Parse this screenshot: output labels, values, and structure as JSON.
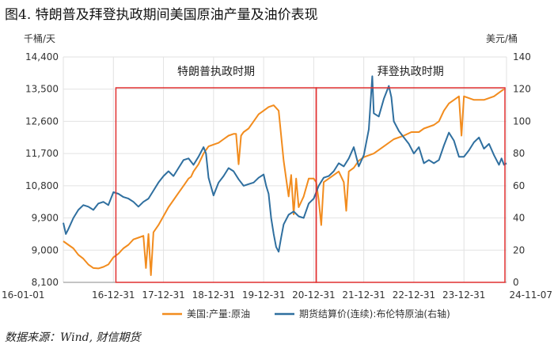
{
  "figure": {
    "title": "图4. 特朗普及拜登执政期间美国原油产量及油价表现",
    "source": "数据来源：Wind, 财信期货"
  },
  "chart_data": {
    "type": "line",
    "left_axis": {
      "unit": "千桶/天",
      "ylim": [
        8100,
        14400
      ],
      "ticks": [
        "14,400",
        "13,500",
        "12,600",
        "11,700",
        "10,800",
        "9,900",
        "9,000",
        "8,100"
      ],
      "tick_values": [
        14400,
        13500,
        12600,
        11700,
        10800,
        9900,
        9000,
        8100
      ]
    },
    "right_axis": {
      "unit": "美元/桶",
      "ylim": [
        0,
        140
      ],
      "ticks": [
        "140",
        "120",
        "100",
        "80",
        "60",
        "40",
        "20",
        "0"
      ],
      "tick_values": [
        140,
        120,
        100,
        80,
        60,
        40,
        20,
        0
      ]
    },
    "x_axis": {
      "tick_labels": [
        "16-01-01",
        "16-12-31",
        "17-12-31",
        "18-12-31",
        "19-12-31",
        "20-12-31",
        "21-12-31",
        "22-12-31",
        "23-12-31",
        "24-11-07"
      ],
      "tick_values": [
        2016.0,
        2017.0,
        2018.0,
        2019.0,
        2020.0,
        2021.0,
        2022.0,
        2023.0,
        2024.0,
        2024.85
      ],
      "xlim": [
        2016.0,
        2024.85
      ]
    },
    "grid": true,
    "legend_position": "bottom",
    "annotations": [
      {
        "label": "特朗普执政时期",
        "x_start": 2017.05,
        "x_end": 2021.05
      },
      {
        "label": "拜登执政时期",
        "x_start": 2021.05,
        "x_end": 2024.85
      }
    ],
    "annotation_color": "#e03030",
    "series": [
      {
        "name": "美国:产量:原油",
        "axis": "left",
        "color": "#f28c1e",
        "points": [
          [
            2016.0,
            9250
          ],
          [
            2016.1,
            9150
          ],
          [
            2016.2,
            9050
          ],
          [
            2016.3,
            8870
          ],
          [
            2016.4,
            8760
          ],
          [
            2016.5,
            8600
          ],
          [
            2016.6,
            8500
          ],
          [
            2016.7,
            8490
          ],
          [
            2016.8,
            8530
          ],
          [
            2016.9,
            8600
          ],
          [
            2017.0,
            8800
          ],
          [
            2017.1,
            8900
          ],
          [
            2017.2,
            9050
          ],
          [
            2017.3,
            9150
          ],
          [
            2017.4,
            9300
          ],
          [
            2017.5,
            9350
          ],
          [
            2017.6,
            9400
          ],
          [
            2017.65,
            8500
          ],
          [
            2017.7,
            9450
          ],
          [
            2017.75,
            8300
          ],
          [
            2017.8,
            9500
          ],
          [
            2017.9,
            9700
          ],
          [
            2018.0,
            9950
          ],
          [
            2018.1,
            10200
          ],
          [
            2018.2,
            10400
          ],
          [
            2018.3,
            10600
          ],
          [
            2018.4,
            10800
          ],
          [
            2018.5,
            11000
          ],
          [
            2018.55,
            11050
          ],
          [
            2018.6,
            11200
          ],
          [
            2018.7,
            11400
          ],
          [
            2018.8,
            11700
          ],
          [
            2018.9,
            11900
          ],
          [
            2019.0,
            11950
          ],
          [
            2019.1,
            12000
          ],
          [
            2019.2,
            12100
          ],
          [
            2019.3,
            12200
          ],
          [
            2019.4,
            12250
          ],
          [
            2019.45,
            12250
          ],
          [
            2019.5,
            11400
          ],
          [
            2019.55,
            12200
          ],
          [
            2019.6,
            12300
          ],
          [
            2019.7,
            12400
          ],
          [
            2019.8,
            12600
          ],
          [
            2019.9,
            12800
          ],
          [
            2020.0,
            12900
          ],
          [
            2020.1,
            13000
          ],
          [
            2020.2,
            13050
          ],
          [
            2020.3,
            12900
          ],
          [
            2020.4,
            11500
          ],
          [
            2020.5,
            10500
          ],
          [
            2020.55,
            11100
          ],
          [
            2020.6,
            10000
          ],
          [
            2020.65,
            11000
          ],
          [
            2020.7,
            10200
          ],
          [
            2020.8,
            10500
          ],
          [
            2020.9,
            11000
          ],
          [
            2021.0,
            11000
          ],
          [
            2021.05,
            10900
          ],
          [
            2021.1,
            10400
          ],
          [
            2021.15,
            9700
          ],
          [
            2021.2,
            10900
          ],
          [
            2021.3,
            11000
          ],
          [
            2021.4,
            11100
          ],
          [
            2021.5,
            11200
          ],
          [
            2021.6,
            10900
          ],
          [
            2021.65,
            10100
          ],
          [
            2021.7,
            11200
          ],
          [
            2021.8,
            11300
          ],
          [
            2021.9,
            11500
          ],
          [
            2022.0,
            11600
          ],
          [
            2022.2,
            11700
          ],
          [
            2022.4,
            11900
          ],
          [
            2022.6,
            12100
          ],
          [
            2022.8,
            12200
          ],
          [
            2022.95,
            12300
          ],
          [
            2023.0,
            12300
          ],
          [
            2023.1,
            12300
          ],
          [
            2023.2,
            12400
          ],
          [
            2023.4,
            12500
          ],
          [
            2023.5,
            12600
          ],
          [
            2023.6,
            12900
          ],
          [
            2023.7,
            13100
          ],
          [
            2023.8,
            13200
          ],
          [
            2023.9,
            13300
          ],
          [
            2023.95,
            12200
          ],
          [
            2024.0,
            13300
          ],
          [
            2024.2,
            13200
          ],
          [
            2024.4,
            13200
          ],
          [
            2024.6,
            13300
          ],
          [
            2024.7,
            13400
          ],
          [
            2024.8,
            13500
          ]
        ]
      },
      {
        "name": "期货结算价(连续):布伦特原油(右轴)",
        "axis": "right",
        "color": "#2f6f9f",
        "points": [
          [
            2016.0,
            37
          ],
          [
            2016.05,
            30
          ],
          [
            2016.1,
            33
          ],
          [
            2016.2,
            40
          ],
          [
            2016.3,
            45
          ],
          [
            2016.4,
            48
          ],
          [
            2016.5,
            47
          ],
          [
            2016.6,
            45
          ],
          [
            2016.7,
            49
          ],
          [
            2016.8,
            50
          ],
          [
            2016.9,
            48
          ],
          [
            2017.0,
            56
          ],
          [
            2017.1,
            55
          ],
          [
            2017.2,
            53
          ],
          [
            2017.3,
            52
          ],
          [
            2017.4,
            50
          ],
          [
            2017.5,
            47
          ],
          [
            2017.6,
            50
          ],
          [
            2017.7,
            52
          ],
          [
            2017.8,
            57
          ],
          [
            2017.9,
            62
          ],
          [
            2018.0,
            66
          ],
          [
            2018.1,
            69
          ],
          [
            2018.2,
            66
          ],
          [
            2018.3,
            71
          ],
          [
            2018.4,
            76
          ],
          [
            2018.5,
            77
          ],
          [
            2018.6,
            73
          ],
          [
            2018.7,
            78
          ],
          [
            2018.8,
            84
          ],
          [
            2018.85,
            80
          ],
          [
            2018.9,
            65
          ],
          [
            2019.0,
            54
          ],
          [
            2019.1,
            62
          ],
          [
            2019.2,
            66
          ],
          [
            2019.3,
            71
          ],
          [
            2019.4,
            69
          ],
          [
            2019.5,
            64
          ],
          [
            2019.6,
            60
          ],
          [
            2019.7,
            61
          ],
          [
            2019.8,
            62
          ],
          [
            2019.9,
            65
          ],
          [
            2020.0,
            67
          ],
          [
            2020.05,
            60
          ],
          [
            2020.1,
            55
          ],
          [
            2020.15,
            40
          ],
          [
            2020.2,
            30
          ],
          [
            2020.25,
            22
          ],
          [
            2020.3,
            19
          ],
          [
            2020.35,
            28
          ],
          [
            2020.4,
            36
          ],
          [
            2020.5,
            42
          ],
          [
            2020.6,
            44
          ],
          [
            2020.7,
            41
          ],
          [
            2020.8,
            40
          ],
          [
            2020.9,
            49
          ],
          [
            2021.0,
            52
          ],
          [
            2021.1,
            60
          ],
          [
            2021.2,
            65
          ],
          [
            2021.3,
            66
          ],
          [
            2021.4,
            69
          ],
          [
            2021.5,
            74
          ],
          [
            2021.6,
            72
          ],
          [
            2021.7,
            77
          ],
          [
            2021.8,
            84
          ],
          [
            2021.9,
            72
          ],
          [
            2022.0,
            79
          ],
          [
            2022.1,
            95
          ],
          [
            2022.17,
            128
          ],
          [
            2022.2,
            105
          ],
          [
            2022.3,
            103
          ],
          [
            2022.4,
            114
          ],
          [
            2022.5,
            122
          ],
          [
            2022.55,
            115
          ],
          [
            2022.6,
            100
          ],
          [
            2022.7,
            94
          ],
          [
            2022.8,
            90
          ],
          [
            2022.9,
            86
          ],
          [
            2023.0,
            80
          ],
          [
            2023.1,
            84
          ],
          [
            2023.2,
            74
          ],
          [
            2023.3,
            76
          ],
          [
            2023.4,
            74
          ],
          [
            2023.5,
            76
          ],
          [
            2023.6,
            85
          ],
          [
            2023.7,
            93
          ],
          [
            2023.8,
            88
          ],
          [
            2023.9,
            78
          ],
          [
            2024.0,
            78
          ],
          [
            2024.1,
            82
          ],
          [
            2024.2,
            87
          ],
          [
            2024.3,
            90
          ],
          [
            2024.4,
            83
          ],
          [
            2024.5,
            86
          ],
          [
            2024.6,
            79
          ],
          [
            2024.7,
            73
          ],
          [
            2024.75,
            77
          ],
          [
            2024.8,
            73
          ],
          [
            2024.85,
            74
          ]
        ]
      }
    ]
  }
}
